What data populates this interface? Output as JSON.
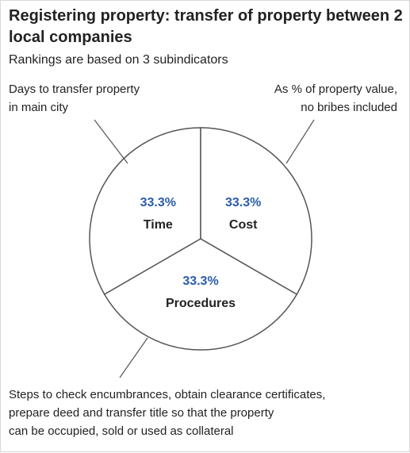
{
  "chart_data": {
    "type": "pie",
    "title": "Registering property: transfer of property between 2 local companies",
    "subtitle": "Rankings are based on 3 subindicators",
    "categories": [
      "Time",
      "Cost",
      "Procedures"
    ],
    "values": [
      33.3,
      33.3,
      33.3
    ],
    "value_labels": [
      "33.3%",
      "33.3%",
      "33.3%"
    ],
    "color": "#ffffff",
    "annotations": [
      {
        "for": "Time",
        "lines": [
          "Days to transfer property",
          "in main city"
        ]
      },
      {
        "for": "Cost",
        "lines": [
          "As % of property value,",
          "no bribes included"
        ]
      },
      {
        "for": "Procedures",
        "lines": [
          "Steps to check encumbrances, obtain clearance certificates,",
          "prepare deed and transfer title so that the property",
          "can be occupied, sold or used as collateral"
        ]
      }
    ]
  }
}
